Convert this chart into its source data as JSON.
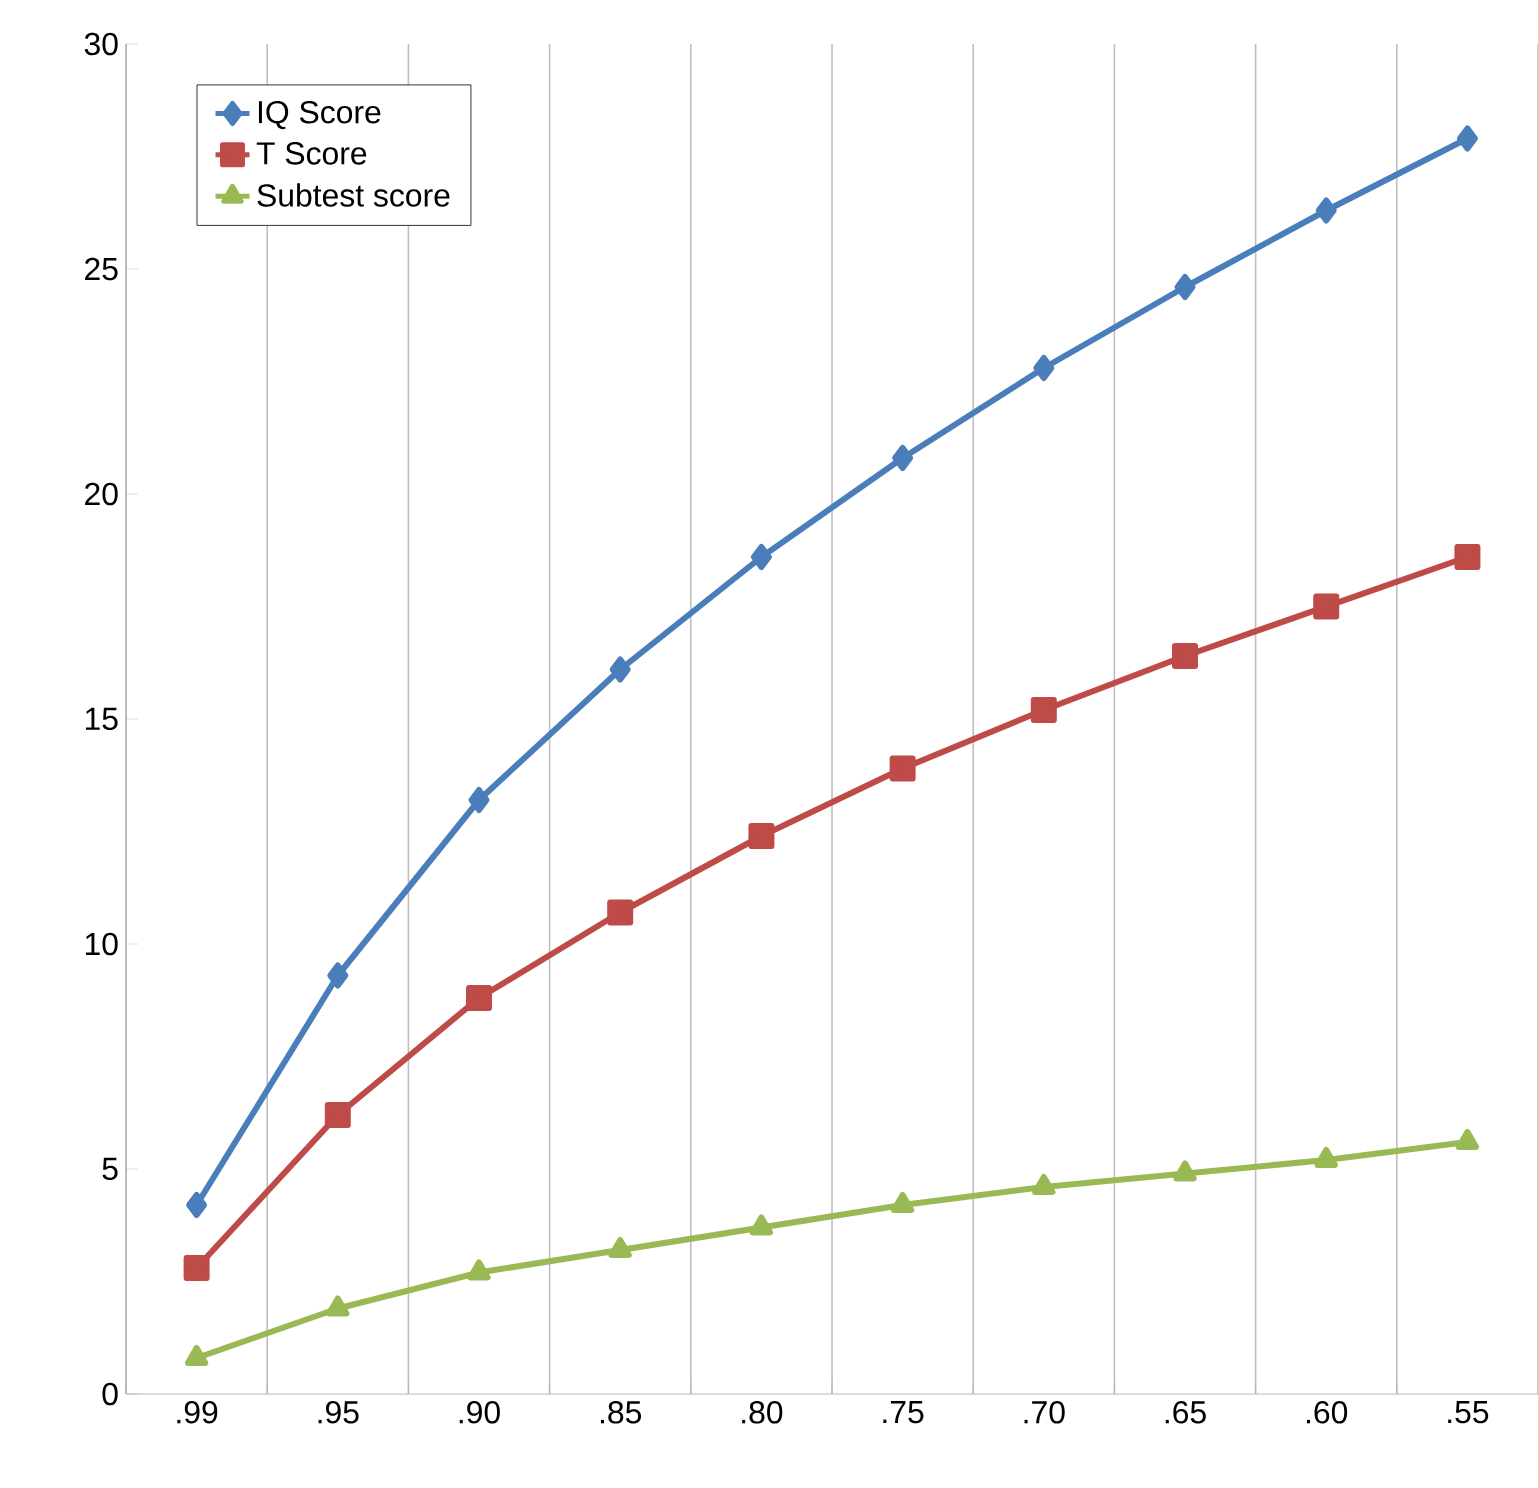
{
  "chart_data": {
    "type": "line",
    "categories": [
      ".99",
      ".95",
      ".90",
      ".85",
      ".80",
      ".75",
      ".70",
      ".65",
      ".60",
      ".55"
    ],
    "series": [
      {
        "name": "IQ Score",
        "color": "#4a7ebb",
        "marker": "diamond",
        "values": [
          4.2,
          9.3,
          13.2,
          16.1,
          18.6,
          20.8,
          22.8,
          24.6,
          26.3,
          27.9
        ]
      },
      {
        "name": "T Score",
        "color": "#be4b48",
        "marker": "square",
        "values": [
          2.8,
          6.2,
          8.8,
          10.7,
          12.4,
          13.9,
          15.2,
          16.4,
          17.5,
          18.6
        ]
      },
      {
        "name": "Subtest score",
        "color": "#98b954",
        "marker": "triangle",
        "values": [
          0.8,
          1.9,
          2.7,
          3.2,
          3.7,
          4.2,
          4.6,
          4.9,
          5.2,
          5.6
        ]
      }
    ],
    "ylim": [
      0,
      30
    ],
    "yticks": [
      0,
      5,
      10,
      15,
      20,
      25,
      30
    ],
    "grid": "x",
    "legend": "top left"
  }
}
